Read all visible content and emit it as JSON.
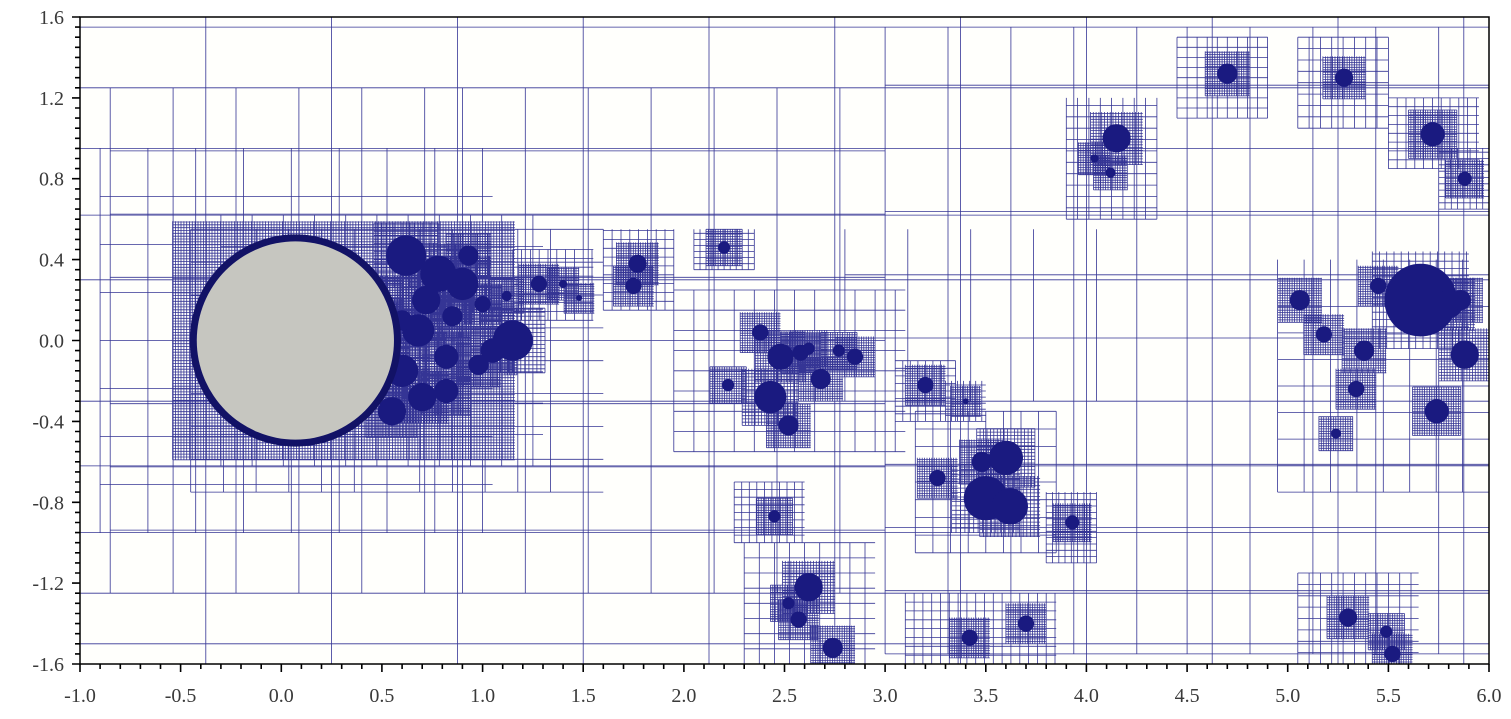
{
  "plot": {
    "x_range": [
      -1.0,
      6.0
    ],
    "y_range": [
      -1.6,
      1.6
    ],
    "x_ticks": [
      -1.0,
      -0.5,
      0.0,
      0.5,
      1.0,
      1.5,
      2.0,
      2.5,
      3.0,
      3.5,
      4.0,
      4.5,
      5.0,
      5.5,
      6.0
    ],
    "y_ticks": [
      -1.6,
      -1.2,
      -0.8,
      -0.4,
      0.0,
      0.4,
      0.8,
      1.2,
      1.6
    ],
    "x_tick_labels": [
      "-1.0",
      "-0.5",
      "0.0",
      "0.5",
      "1.0",
      "1.5",
      "2.0",
      "2.5",
      "3.0",
      "3.5",
      "4.0",
      "4.5",
      "5.0",
      "5.5",
      "6.0"
    ],
    "y_tick_labels": [
      "-1.6",
      "-1.2",
      "-0.8",
      "-0.4",
      "0.0",
      "0.4",
      "0.8",
      "1.2",
      "1.6"
    ],
    "colors": {
      "mesh": "#1f1f8a",
      "bubble": "#1a1a80",
      "cylinder_fill": "#c6c6c0",
      "cylinder_edge": "#121266",
      "background": "#fffffc",
      "axis": "#000000",
      "label": "#3a3a3a"
    }
  },
  "cylinder": {
    "cx": 0.07,
    "cy": 0.0,
    "r": 0.49
  },
  "bubbles": [
    [
      0.62,
      0.42,
      0.1
    ],
    [
      0.78,
      0.33,
      0.09
    ],
    [
      0.93,
      0.42,
      0.05
    ],
    [
      0.72,
      0.2,
      0.07
    ],
    [
      0.9,
      0.28,
      0.08
    ],
    [
      0.68,
      0.05,
      0.08
    ],
    [
      0.85,
      0.12,
      0.05
    ],
    [
      1.0,
      0.18,
      0.04
    ],
    [
      1.15,
      0.0,
      0.1
    ],
    [
      1.05,
      -0.05,
      0.06
    ],
    [
      0.98,
      -0.12,
      0.05
    ],
    [
      0.82,
      -0.08,
      0.06
    ],
    [
      0.6,
      -0.15,
      0.08
    ],
    [
      0.7,
      -0.28,
      0.07
    ],
    [
      0.82,
      -0.25,
      0.06
    ],
    [
      0.55,
      -0.35,
      0.07
    ],
    [
      0.48,
      0.2,
      0.06
    ],
    [
      0.52,
      -0.05,
      0.06
    ],
    [
      1.28,
      0.28,
      0.04
    ],
    [
      1.4,
      0.28,
      0.02
    ],
    [
      1.48,
      0.21,
      0.015
    ],
    [
      1.12,
      0.22,
      0.025
    ],
    [
      0.6,
      0.1,
      0.05
    ],
    [
      1.77,
      0.38,
      0.045
    ],
    [
      1.75,
      0.27,
      0.04
    ],
    [
      2.2,
      0.46,
      0.03
    ],
    [
      2.38,
      0.04,
      0.04
    ],
    [
      2.48,
      -0.08,
      0.065
    ],
    [
      2.58,
      -0.06,
      0.04
    ],
    [
      2.68,
      -0.19,
      0.05
    ],
    [
      2.62,
      -0.04,
      0.03
    ],
    [
      2.22,
      -0.22,
      0.03
    ],
    [
      2.43,
      -0.28,
      0.08
    ],
    [
      2.52,
      -0.42,
      0.05
    ],
    [
      2.77,
      -0.05,
      0.03
    ],
    [
      2.85,
      -0.08,
      0.04
    ],
    [
      3.2,
      -0.22,
      0.04
    ],
    [
      3.4,
      -0.3,
      0.015
    ],
    [
      3.48,
      -0.6,
      0.05
    ],
    [
      3.6,
      -0.58,
      0.085
    ],
    [
      3.5,
      -0.78,
      0.11
    ],
    [
      3.62,
      -0.82,
      0.09
    ],
    [
      3.26,
      -0.68,
      0.04
    ],
    [
      3.93,
      -0.9,
      0.035
    ],
    [
      2.45,
      -0.87,
      0.03
    ],
    [
      2.62,
      -1.22,
      0.07
    ],
    [
      2.52,
      -1.3,
      0.03
    ],
    [
      2.57,
      -1.38,
      0.04
    ],
    [
      2.74,
      -1.52,
      0.05
    ],
    [
      3.42,
      -1.47,
      0.04
    ],
    [
      3.7,
      -1.4,
      0.04
    ],
    [
      4.15,
      1.0,
      0.07
    ],
    [
      4.04,
      0.9,
      0.02
    ],
    [
      4.12,
      0.83,
      0.025
    ],
    [
      4.7,
      1.32,
      0.05
    ],
    [
      5.28,
      1.3,
      0.045
    ],
    [
      5.72,
      1.02,
      0.06
    ],
    [
      5.88,
      0.8,
      0.035
    ],
    [
      5.66,
      0.2,
      0.18
    ],
    [
      5.8,
      0.18,
      0.07
    ],
    [
      5.86,
      0.2,
      0.05
    ],
    [
      5.45,
      0.27,
      0.04
    ],
    [
      5.06,
      0.2,
      0.05
    ],
    [
      5.18,
      0.03,
      0.04
    ],
    [
      5.38,
      -0.05,
      0.05
    ],
    [
      5.88,
      -0.07,
      0.07
    ],
    [
      5.34,
      -0.24,
      0.04
    ],
    [
      5.74,
      -0.35,
      0.06
    ],
    [
      5.24,
      -0.46,
      0.025
    ],
    [
      5.3,
      -1.37,
      0.045
    ],
    [
      5.49,
      -1.44,
      0.03
    ],
    [
      5.52,
      -1.55,
      0.04
    ]
  ],
  "refinement_blocks": [
    [
      -0.9,
      0.95,
      1.05,
      -0.95
    ],
    [
      -0.3,
      0.62,
      1.3,
      -0.62
    ],
    [
      -0.45,
      0.55,
      1.6,
      -0.75
    ],
    [
      1.15,
      0.45,
      1.55,
      0.1
    ],
    [
      1.6,
      0.55,
      1.95,
      0.15
    ],
    [
      2.05,
      0.55,
      2.35,
      0.35
    ],
    [
      1.95,
      0.25,
      3.1,
      -0.55
    ],
    [
      2.25,
      -0.7,
      2.6,
      -1.0
    ],
    [
      2.3,
      -1.0,
      2.95,
      -1.6
    ],
    [
      3.05,
      -0.1,
      3.35,
      -0.4
    ],
    [
      3.3,
      -0.2,
      3.5,
      -0.4
    ],
    [
      3.15,
      -0.35,
      3.85,
      -1.05
    ],
    [
      3.8,
      -0.75,
      4.05,
      -1.1
    ],
    [
      3.1,
      -1.25,
      3.85,
      -1.6
    ],
    [
      3.9,
      1.2,
      4.35,
      0.6
    ],
    [
      4.45,
      1.5,
      4.9,
      1.1
    ],
    [
      5.05,
      1.5,
      5.5,
      1.05
    ],
    [
      5.5,
      1.2,
      5.95,
      0.85
    ],
    [
      5.75,
      0.95,
      6.0,
      0.65
    ],
    [
      4.95,
      0.4,
      6.0,
      -0.75
    ],
    [
      5.05,
      -1.15,
      5.65,
      -1.6
    ]
  ],
  "coarse_blocks": [
    [
      -0.85,
      1.25,
      0.9,
      -1.25
    ],
    [
      0.9,
      1.25,
      3.0,
      -1.25
    ],
    [
      3.0,
      1.55,
      4.5,
      -1.55
    ],
    [
      4.5,
      1.55,
      6.0,
      -1.55
    ],
    [
      2.8,
      0.55,
      4.2,
      -0.3
    ]
  ]
}
